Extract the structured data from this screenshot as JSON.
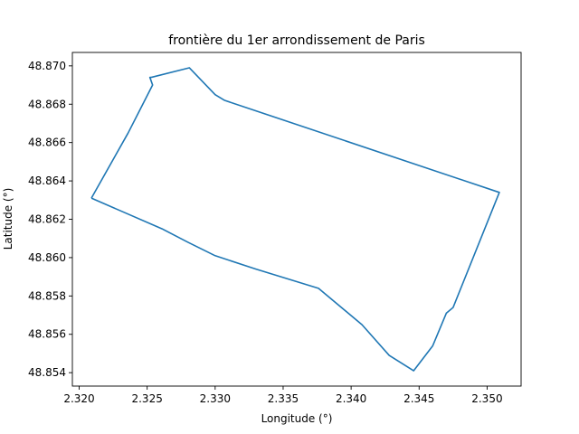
{
  "chart_data": {
    "type": "line",
    "title": "frontière du 1er arrondissement de Paris",
    "xlabel": "Longitude (°)",
    "ylabel": "Latitude (°)",
    "xlim": [
      2.3195,
      2.3525
    ],
    "ylim": [
      48.8533,
      48.8707
    ],
    "xticks": [
      2.32,
      2.325,
      2.33,
      2.335,
      2.34,
      2.345,
      2.35
    ],
    "xtick_labels": [
      "2.320",
      "2.325",
      "2.330",
      "2.335",
      "2.340",
      "2.345",
      "2.350"
    ],
    "yticks": [
      48.854,
      48.856,
      48.858,
      48.86,
      48.862,
      48.864,
      48.866,
      48.868,
      48.87
    ],
    "ytick_labels": [
      "48.854",
      "48.856",
      "48.858",
      "48.860",
      "48.862",
      "48.864",
      "48.866",
      "48.868",
      "48.870"
    ],
    "grid": false,
    "line_color": "#1f77b4",
    "series": [
      {
        "x": [
          2.3209,
          2.3236,
          2.3254,
          2.3252,
          2.3253,
          2.3281,
          2.33,
          2.3307,
          2.3509,
          2.3475,
          2.347,
          2.346,
          2.3446,
          2.3428,
          2.3408,
          2.3376,
          2.333,
          2.33,
          2.328,
          2.3261,
          2.3209
        ],
        "y": [
          48.8631,
          48.8665,
          48.869,
          48.8694,
          48.8694,
          48.8699,
          48.8685,
          48.8682,
          48.8634,
          48.8574,
          48.8571,
          48.8554,
          48.8541,
          48.8549,
          48.8565,
          48.8584,
          48.8594,
          48.8601,
          48.8608,
          48.8615,
          48.8631
        ]
      }
    ]
  }
}
